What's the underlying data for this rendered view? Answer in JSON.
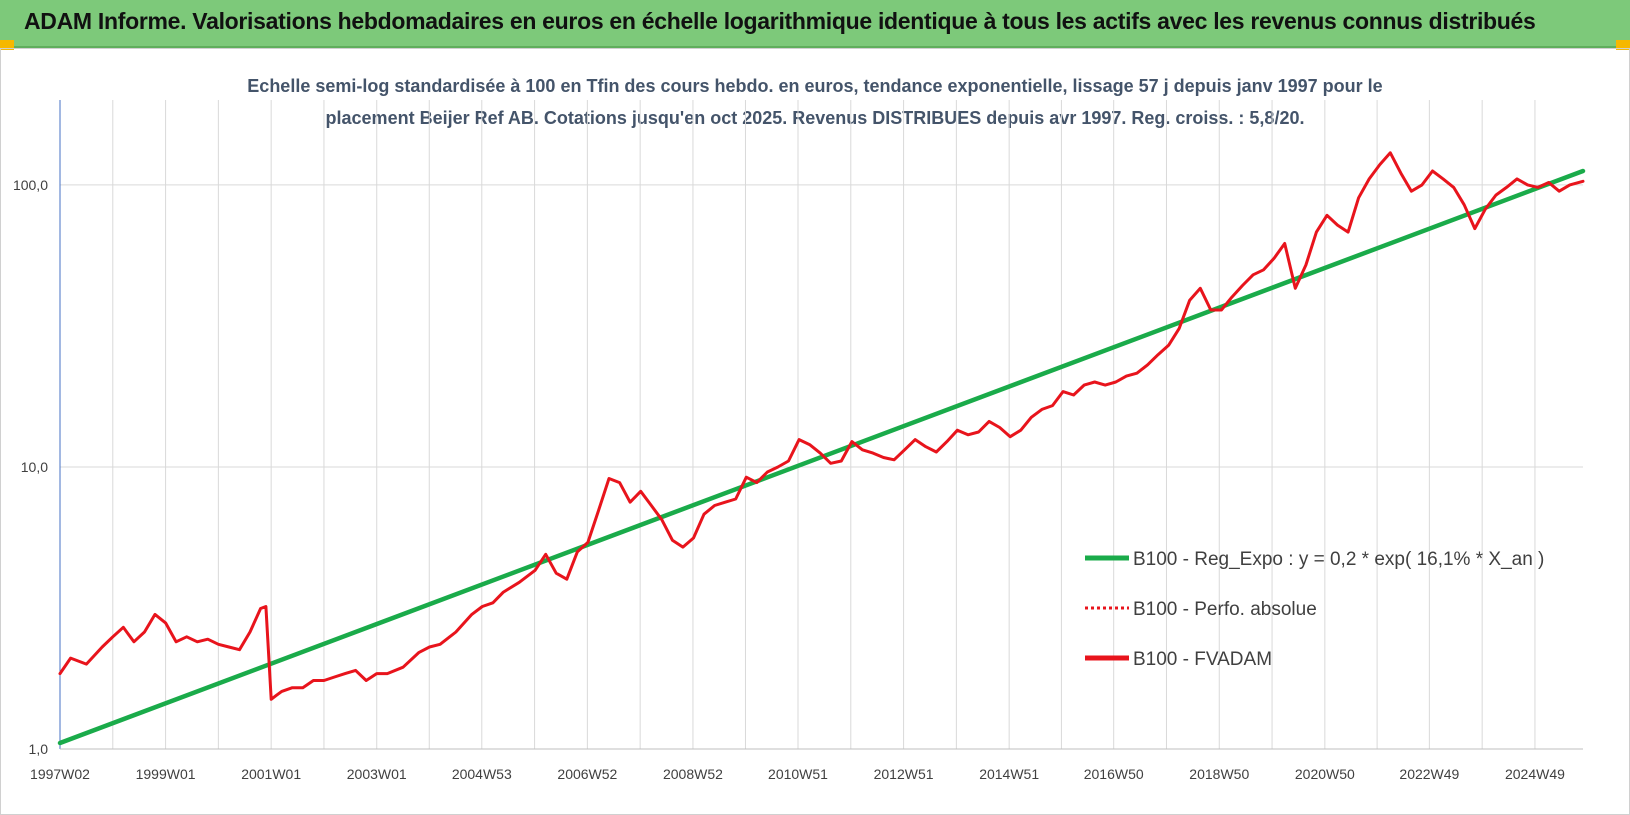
{
  "banner": {
    "title": "ADAM Informe. Valorisations hebdomadaires en euros en échelle logarithmique identique à tous les actifs avec les revenus connus distribués"
  },
  "colors": {
    "banner_bg": "#7dc97a",
    "corner": "#f5b800",
    "trend": "#1aab4a",
    "price": "#e8141c",
    "grid": "#d9d9d9"
  },
  "chart_data": {
    "type": "line",
    "title_lines": [
      "Echelle semi-log standardisée à 100 en Tfin des cours hebdo. en euros, tendance exponentielle, lissage 57 j depuis janv 1997 pour le",
      "placement Beijer Ref AB. Cotations jusqu'en oct 2025. Revenus DISTRIBUES depuis avr 1997. Reg. croiss. : 5,8/20."
    ],
    "y_scale": "log",
    "ylim": [
      1,
      200
    ],
    "y_ticks": [
      1,
      10,
      100
    ],
    "y_tick_labels": [
      "1,0",
      "10,0",
      "100,0"
    ],
    "x_ticks": [
      1997.0,
      1999.0,
      2001.0,
      2003.0,
      2004.99,
      2006.99,
      2008.99,
      2010.98,
      2012.98,
      2014.98,
      2016.96,
      2018.96,
      2020.96,
      2022.94,
      2024.94
    ],
    "x_tick_labels": [
      "1997W02",
      "1999W01",
      "2001W01",
      "2003W01",
      "2004W53",
      "2006W52",
      "2008W52",
      "2010W51",
      "2012W51",
      "2014W51",
      "2016W50",
      "2018W50",
      "2020W50",
      "2022W49",
      "2024W49"
    ],
    "xlim": [
      1997.0,
      2025.85
    ],
    "grid": true,
    "legend": {
      "placement": "bottom-right",
      "entries": [
        {
          "label": "B100 - Reg_Expo : y = 0,2 * exp( 16,1% *  X_an )",
          "color": "#1aab4a",
          "style": "solid"
        },
        {
          "label": "B100 - Perfo. absolue",
          "color": "#e8141c",
          "style": "dotted"
        },
        {
          "label": "B100 - FVADAM",
          "color": "#e8141c",
          "style": "solid"
        }
      ]
    },
    "series": [
      {
        "name": "B100 - Reg_Expo : y = 0,2 * exp( 16,1% *  X_an )",
        "color": "#1aab4a",
        "x": [
          1997.0,
          2025.85
        ],
        "y": [
          1.05,
          112
        ]
      },
      {
        "name": "B100 - FVADAM",
        "color": "#e8141c",
        "x": [
          1997.0,
          1997.2,
          1997.5,
          1997.8,
          1998.0,
          1998.2,
          1998.4,
          1998.6,
          1998.8,
          1999.0,
          1999.2,
          1999.4,
          1999.6,
          1999.8,
          2000.0,
          2000.2,
          2000.4,
          2000.6,
          2000.8,
          2000.9,
          2001.0,
          2001.1,
          2001.2,
          2001.4,
          2001.6,
          2001.8,
          2002.0,
          2002.2,
          2002.4,
          2002.6,
          2002.8,
          2003.0,
          2003.2,
          2003.5,
          2003.8,
          2004.0,
          2004.2,
          2004.5,
          2004.8,
          2005.0,
          2005.2,
          2005.4,
          2005.7,
          2006.0,
          2006.2,
          2006.4,
          2006.6,
          2006.8,
          2007.0,
          2007.2,
          2007.4,
          2007.6,
          2007.8,
          2008.0,
          2008.2,
          2008.4,
          2008.6,
          2008.8,
          2009.0,
          2009.2,
          2009.4,
          2009.6,
          2009.8,
          2010.0,
          2010.2,
          2010.4,
          2010.6,
          2010.8,
          2011.0,
          2011.2,
          2011.4,
          2011.6,
          2011.8,
          2012.0,
          2012.2,
          2012.4,
          2012.6,
          2012.8,
          2013.0,
          2013.2,
          2013.4,
          2013.6,
          2013.8,
          2014.0,
          2014.2,
          2014.4,
          2014.6,
          2014.8,
          2015.0,
          2015.2,
          2015.4,
          2015.6,
          2015.8,
          2016.0,
          2016.2,
          2016.4,
          2016.6,
          2016.8,
          2017.0,
          2017.2,
          2017.4,
          2017.6,
          2017.8,
          2018.0,
          2018.2,
          2018.4,
          2018.6,
          2018.8,
          2019.0,
          2019.2,
          2019.4,
          2019.6,
          2019.8,
          2020.0,
          2020.2,
          2020.4,
          2020.6,
          2020.8,
          2021.0,
          2021.2,
          2021.4,
          2021.6,
          2021.8,
          2022.0,
          2022.2,
          2022.4,
          2022.6,
          2022.8,
          2023.0,
          2023.2,
          2023.4,
          2023.6,
          2023.8,
          2024.0,
          2024.2,
          2024.4,
          2024.6,
          2024.8,
          2025.0,
          2025.2,
          2025.4,
          2025.6,
          2025.85
        ],
        "y": [
          1.85,
          2.1,
          2.0,
          2.3,
          2.5,
          2.7,
          2.4,
          2.6,
          3.0,
          2.8,
          2.4,
          2.5,
          2.4,
          2.45,
          2.35,
          2.3,
          2.25,
          2.6,
          3.15,
          3.2,
          1.5,
          1.55,
          1.6,
          1.65,
          1.65,
          1.75,
          1.75,
          1.8,
          1.85,
          1.9,
          1.75,
          1.85,
          1.85,
          1.95,
          2.2,
          2.3,
          2.35,
          2.6,
          3.0,
          3.2,
          3.3,
          3.6,
          3.9,
          4.3,
          4.9,
          4.2,
          4.0,
          5.0,
          5.4,
          7.0,
          9.1,
          8.8,
          7.5,
          8.2,
          7.3,
          6.5,
          5.5,
          5.2,
          5.6,
          6.8,
          7.3,
          7.5,
          7.7,
          9.2,
          8.8,
          9.6,
          10.0,
          10.5,
          12.5,
          12.0,
          11.2,
          10.3,
          10.5,
          12.3,
          11.5,
          11.2,
          10.8,
          10.6,
          11.5,
          12.5,
          11.8,
          11.3,
          12.3,
          13.5,
          13.0,
          13.3,
          14.5,
          13.8,
          12.8,
          13.5,
          15.0,
          16.0,
          16.5,
          18.5,
          18.0,
          19.5,
          20.0,
          19.5,
          20.0,
          21.0,
          21.5,
          23.0,
          25.0,
          27.0,
          31.0,
          39.0,
          43.0,
          36.0,
          36.0,
          40.0,
          44.0,
          48.0,
          50.0,
          55.0,
          62.0,
          43.0,
          52.0,
          68.0,
          78.0,
          72.0,
          68.0,
          90.0,
          105.0,
          118.0,
          130.0,
          110.0,
          95.0,
          100.0,
          112.0,
          105.0,
          98.0,
          85.0,
          70.0,
          82.0,
          92.0,
          98.0,
          105.0,
          100.0,
          98.0,
          102.0,
          95.0,
          100.0,
          103.0
        ]
      }
    ]
  }
}
